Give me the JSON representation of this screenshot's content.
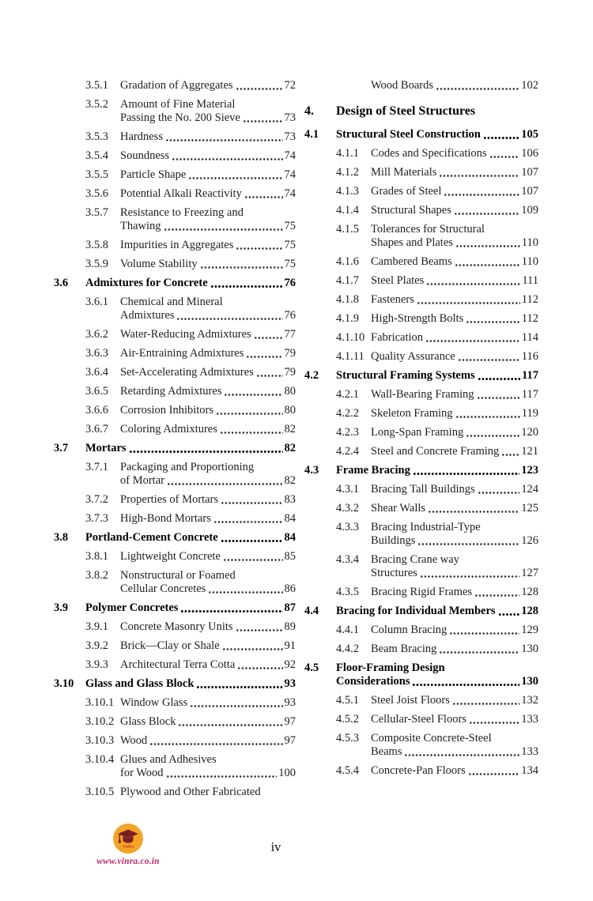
{
  "footer": {
    "site_url": "www.vinra.co.in",
    "logo_text": "VinRa",
    "page_number": "iv",
    "logo_colors": {
      "circle": "#F4A426",
      "cap": "#7A1F24",
      "url_text": "#C2226A"
    }
  },
  "toc": {
    "left_column": [
      {
        "type": "sub",
        "num": "3.5.1",
        "lines": [
          "Gradation of Aggregates"
        ],
        "page": "72"
      },
      {
        "type": "sub",
        "num": "3.5.2",
        "lines": [
          "Amount of Fine Material",
          "Passing the No. 200 Sieve"
        ],
        "page": "73"
      },
      {
        "type": "sub",
        "num": "3.5.3",
        "lines": [
          "Hardness"
        ],
        "page": "73"
      },
      {
        "type": "sub",
        "num": "3.5.4",
        "lines": [
          "Soundness"
        ],
        "page": "74"
      },
      {
        "type": "sub",
        "num": "3.5.5",
        "lines": [
          "Particle Shape"
        ],
        "page": "74"
      },
      {
        "type": "sub",
        "num": "3.5.6",
        "lines": [
          "Potential Alkali Reactivity"
        ],
        "page": "74"
      },
      {
        "type": "sub",
        "num": "3.5.7",
        "lines": [
          "Resistance to Freezing and",
          "Thawing"
        ],
        "page": "75"
      },
      {
        "type": "sub",
        "num": "3.5.8",
        "lines": [
          "Impurities in Aggregates"
        ],
        "page": "75"
      },
      {
        "type": "sub",
        "num": "3.5.9",
        "lines": [
          "Volume Stability"
        ],
        "page": "75"
      },
      {
        "type": "section",
        "num": "3.6",
        "lines": [
          "Admixtures for Concrete"
        ],
        "page": "76"
      },
      {
        "type": "sub",
        "num": "3.6.1",
        "lines": [
          "Chemical and Mineral",
          "Admixtures"
        ],
        "page": "76"
      },
      {
        "type": "sub",
        "num": "3.6.2",
        "lines": [
          "Water-Reducing Admixtures"
        ],
        "page": "77"
      },
      {
        "type": "sub",
        "num": "3.6.3",
        "lines": [
          "Air-Entraining Admixtures"
        ],
        "page": "79"
      },
      {
        "type": "sub",
        "num": "3.6.4",
        "lines": [
          "Set-Accelerating Admixtures"
        ],
        "page": "79"
      },
      {
        "type": "sub",
        "num": "3.6.5",
        "lines": [
          "Retarding Admixtures"
        ],
        "page": "80"
      },
      {
        "type": "sub",
        "num": "3.6.6",
        "lines": [
          "Corrosion Inhibitors"
        ],
        "page": "80"
      },
      {
        "type": "sub",
        "num": "3.6.7",
        "lines": [
          "Coloring Admixtures"
        ],
        "page": "82"
      },
      {
        "type": "section",
        "num": "3.7",
        "lines": [
          "Mortars"
        ],
        "page": "82"
      },
      {
        "type": "sub",
        "num": "3.7.1",
        "lines": [
          "Packaging and Proportioning",
          "of Mortar"
        ],
        "page": "82"
      },
      {
        "type": "sub",
        "num": "3.7.2",
        "lines": [
          "Properties of Mortars"
        ],
        "page": "83"
      },
      {
        "type": "sub",
        "num": "3.7.3",
        "lines": [
          "High-Bond Mortars"
        ],
        "page": "84"
      },
      {
        "type": "section",
        "num": "3.8",
        "lines": [
          "Portland-Cement Concrete"
        ],
        "page": "84"
      },
      {
        "type": "sub",
        "num": "3.8.1",
        "lines": [
          "Lightweight Concrete"
        ],
        "page": "85"
      },
      {
        "type": "sub",
        "num": "3.8.2",
        "lines": [
          "Nonstructural or Foamed",
          "Cellular Concretes"
        ],
        "page": "86"
      },
      {
        "type": "section",
        "num": "3.9",
        "lines": [
          "Polymer Concretes"
        ],
        "page": "87"
      },
      {
        "type": "sub",
        "num": "3.9.1",
        "lines": [
          "Concrete Masonry Units"
        ],
        "page": "89"
      },
      {
        "type": "sub",
        "num": "3.9.2",
        "lines": [
          "Brick—Clay or Shale"
        ],
        "page": "91"
      },
      {
        "type": "sub",
        "num": "3.9.3",
        "lines": [
          "Architectural Terra Cotta"
        ],
        "page": "92"
      },
      {
        "type": "section",
        "num": "3.10",
        "lines": [
          "Glass and Glass Block"
        ],
        "page": "93"
      },
      {
        "type": "sub",
        "num": "3.10.1",
        "lines": [
          "Window Glass"
        ],
        "page": "93"
      },
      {
        "type": "sub",
        "num": "3.10.2",
        "lines": [
          "Glass Block"
        ],
        "page": "97"
      },
      {
        "type": "sub",
        "num": "3.10.3",
        "lines": [
          "Wood"
        ],
        "page": "97"
      },
      {
        "type": "sub",
        "num": "3.10.4",
        "lines": [
          "Glues and Adhesives",
          "for Wood"
        ],
        "page": "100"
      },
      {
        "type": "sub",
        "num": "3.10.5",
        "lines": [
          "Plywood and Other Fabricated"
        ],
        "page": null
      }
    ],
    "right_column": [
      {
        "type": "continuation",
        "num": "",
        "lines": [
          "Wood Boards"
        ],
        "page": "102"
      },
      {
        "type": "chapter",
        "num": "4.",
        "lines": [
          "Design of Steel Structures"
        ],
        "page": null
      },
      {
        "type": "section",
        "num": "4.1",
        "lines": [
          "Structural Steel Construction"
        ],
        "page": "105"
      },
      {
        "type": "sub",
        "num": "4.1.1",
        "lines": [
          "Codes and Specifications"
        ],
        "page": "106"
      },
      {
        "type": "sub",
        "num": "4.1.2",
        "lines": [
          "Mill Materials"
        ],
        "page": "107"
      },
      {
        "type": "sub",
        "num": "4.1.3",
        "lines": [
          "Grades of Steel"
        ],
        "page": "107"
      },
      {
        "type": "sub",
        "num": "4.1.4",
        "lines": [
          "Structural Shapes"
        ],
        "page": "109"
      },
      {
        "type": "sub",
        "num": "4.1.5",
        "lines": [
          "Tolerances for Structural",
          "Shapes and Plates"
        ],
        "page": "110"
      },
      {
        "type": "sub",
        "num": "4.1.6",
        "lines": [
          "Cambered Beams"
        ],
        "page": "110"
      },
      {
        "type": "sub",
        "num": "4.1.7",
        "lines": [
          "Steel Plates"
        ],
        "page": "111"
      },
      {
        "type": "sub",
        "num": "4.1.8",
        "lines": [
          "Fasteners"
        ],
        "page": "112"
      },
      {
        "type": "sub",
        "num": "4.1.9",
        "lines": [
          "High-Strength Bolts"
        ],
        "page": "112"
      },
      {
        "type": "sub",
        "num": "4.1.10",
        "lines": [
          "Fabrication"
        ],
        "page": "114"
      },
      {
        "type": "sub",
        "num": "4.1.11",
        "lines": [
          "Quality Assurance"
        ],
        "page": "116"
      },
      {
        "type": "section",
        "num": "4.2",
        "lines": [
          "Structural Framing Systems"
        ],
        "page": "117"
      },
      {
        "type": "sub",
        "num": "4.2.1",
        "lines": [
          "Wall-Bearing Framing"
        ],
        "page": "117"
      },
      {
        "type": "sub",
        "num": "4.2.2",
        "lines": [
          "Skeleton Framing"
        ],
        "page": "119"
      },
      {
        "type": "sub",
        "num": "4.2.3",
        "lines": [
          "Long-Span Framing"
        ],
        "page": "120"
      },
      {
        "type": "sub",
        "num": "4.2.4",
        "lines": [
          "Steel and Concrete Framing"
        ],
        "page": "121"
      },
      {
        "type": "section",
        "num": "4.3",
        "lines": [
          "Frame Bracing"
        ],
        "page": "123"
      },
      {
        "type": "sub",
        "num": "4.3.1",
        "lines": [
          "Bracing Tall Buildings"
        ],
        "page": "124"
      },
      {
        "type": "sub",
        "num": "4.3.2",
        "lines": [
          "Shear Walls"
        ],
        "page": "125"
      },
      {
        "type": "sub",
        "num": "4.3.3",
        "lines": [
          "Bracing Industrial-Type",
          "Buildings"
        ],
        "page": "126"
      },
      {
        "type": "sub",
        "num": "4.3.4",
        "lines": [
          "Bracing Crane way",
          "Structures"
        ],
        "page": "127"
      },
      {
        "type": "sub",
        "num": "4.3.5",
        "lines": [
          "Bracing Rigid Frames"
        ],
        "page": "128"
      },
      {
        "type": "section",
        "num": "4.4",
        "lines": [
          "Bracing for Individual Members"
        ],
        "page": "128"
      },
      {
        "type": "sub",
        "num": "4.4.1",
        "lines": [
          "Column Bracing"
        ],
        "page": "129"
      },
      {
        "type": "sub",
        "num": "4.4.2",
        "lines": [
          "Beam Bracing"
        ],
        "page": "130"
      },
      {
        "type": "section",
        "num": "4.5",
        "lines": [
          "Floor-Framing Design",
          "Considerations"
        ],
        "page": "130"
      },
      {
        "type": "sub",
        "num": "4.5.1",
        "lines": [
          "Steel Joist Floors"
        ],
        "page": "132"
      },
      {
        "type": "sub",
        "num": "4.5.2",
        "lines": [
          "Cellular-Steel Floors"
        ],
        "page": "133"
      },
      {
        "type": "sub",
        "num": "4.5.3",
        "lines": [
          "Composite Concrete-Steel",
          "Beams"
        ],
        "page": "133"
      },
      {
        "type": "sub",
        "num": "4.5.4",
        "lines": [
          "Concrete-Pan Floors"
        ],
        "page": "134"
      }
    ]
  }
}
